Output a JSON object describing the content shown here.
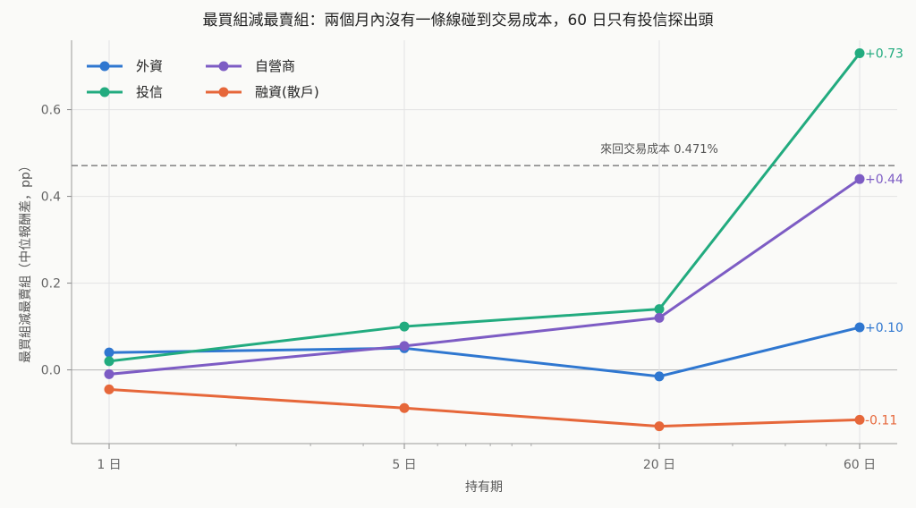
{
  "chart_data": {
    "type": "line",
    "title": "最買組減最賣組：兩個月內沒有一條線碰到交易成本，60 日只有投信探出頭",
    "xlabel": "持有期",
    "ylabel": "最買組減最賣組（中位報酬差，pp）",
    "x_scale": "log",
    "categories": [
      "1 日",
      "5 日",
      "20 日",
      "60 日"
    ],
    "x": [
      1,
      5,
      20,
      60
    ],
    "ylim": [
      -0.17,
      0.76
    ],
    "y_ticks": [
      0.0,
      0.2,
      0.4,
      0.6
    ],
    "y_tick_labels": [
      "0.0",
      "0.2",
      "0.4",
      "0.6"
    ],
    "grid": true,
    "legend_position": "top-left",
    "threshold": {
      "value": 0.471,
      "label": "來回交易成本 0.471%"
    },
    "series": [
      {
        "name": "外資",
        "color": "#2f77d0",
        "values": [
          0.04,
          0.05,
          -0.015,
          0.098
        ],
        "end_label": "+0.10"
      },
      {
        "name": "投信",
        "color": "#22ab7f",
        "values": [
          0.02,
          0.1,
          0.14,
          0.73
        ],
        "end_label": "+0.73"
      },
      {
        "name": "自營商",
        "color": "#7d5cc4",
        "values": [
          -0.01,
          0.055,
          0.12,
          0.44
        ],
        "end_label": "+0.44"
      },
      {
        "name": "融資(散戶)",
        "color": "#e6673a",
        "values": [
          -0.045,
          -0.088,
          -0.13,
          -0.115
        ],
        "end_label": "-0.11"
      }
    ]
  }
}
